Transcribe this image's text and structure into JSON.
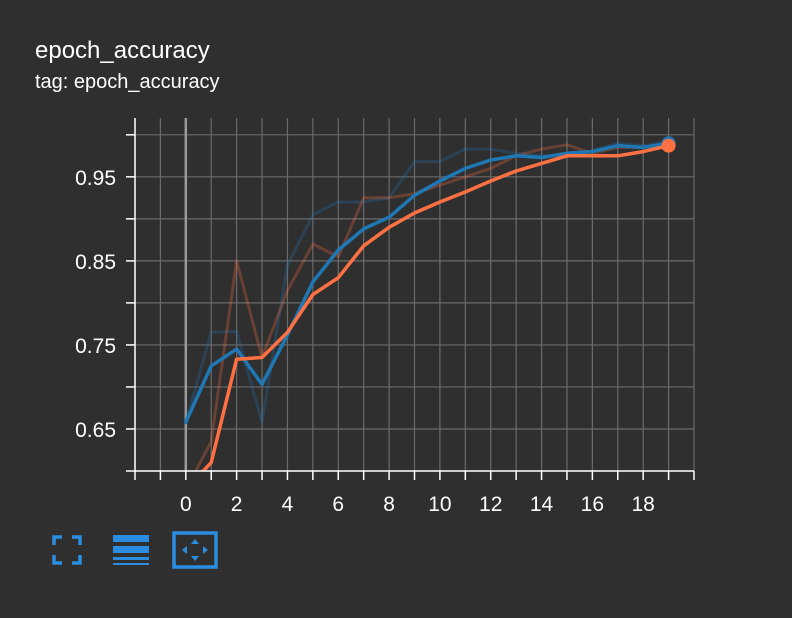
{
  "card": {
    "title": "epoch_accuracy",
    "tag": "tag: epoch_accuracy"
  },
  "colors": {
    "background": "#2f2f2f",
    "grid": "#6a6a6a",
    "axis": "#ffffff",
    "zero_line": "#9a9a9a",
    "train": "#1f77b4",
    "validation": "#ff7043",
    "toolbar_icon": "#2b8de0"
  },
  "toolbar": {
    "buttons": [
      {
        "name": "fullscreen-icon"
      },
      {
        "name": "toggle-log-scale-icon"
      },
      {
        "name": "fit-domain-icon"
      }
    ]
  },
  "chart_data": {
    "type": "line",
    "title": "epoch_accuracy",
    "xlabel": "",
    "ylabel": "",
    "xlim": [
      -2,
      20
    ],
    "ylim": [
      0.6,
      1.02
    ],
    "x_ticks": [
      0,
      2,
      4,
      6,
      8,
      10,
      12,
      14,
      16,
      18
    ],
    "x_tick_labels": [
      "0",
      "2",
      "4",
      "6",
      "8",
      "10",
      "12",
      "14",
      "16",
      "18"
    ],
    "y_ticks": [
      0.65,
      0.75,
      0.85,
      0.95
    ],
    "y_tick_labels": [
      "0.65",
      "0.75",
      "0.85",
      "0.95"
    ],
    "grid": true,
    "smoothing": "raw series drawn faded, smoothed series drawn bold",
    "series": [
      {
        "role": "train",
        "color": "#1f77b4",
        "x": [
          0,
          1,
          2,
          3,
          4,
          5,
          6,
          7,
          8,
          9,
          10,
          11,
          12,
          13,
          14,
          15,
          16,
          17,
          18,
          19
        ],
        "raw": [
          0.658,
          0.765,
          0.766,
          0.658,
          0.845,
          0.905,
          0.92,
          0.92,
          0.925,
          0.968,
          0.968,
          0.983,
          0.983,
          0.978,
          0.975,
          0.975,
          0.981,
          0.99,
          0.987,
          0.993
        ],
        "smoothed": [
          0.658,
          0.725,
          0.745,
          0.703,
          0.762,
          0.825,
          0.863,
          0.888,
          0.902,
          0.928,
          0.945,
          0.96,
          0.97,
          0.975,
          0.973,
          0.978,
          0.98,
          0.987,
          0.985,
          0.99
        ]
      },
      {
        "role": "validation",
        "color": "#ff7043",
        "x": [
          0,
          1,
          2,
          3,
          4,
          5,
          6,
          7,
          8,
          9,
          10,
          11,
          12,
          13,
          14,
          15,
          16,
          17,
          18,
          19
        ],
        "raw": [
          0.578,
          0.635,
          0.85,
          0.735,
          0.815,
          0.87,
          0.855,
          0.925,
          0.925,
          0.93,
          0.94,
          0.95,
          0.96,
          0.975,
          0.983,
          0.988,
          0.978,
          0.985,
          0.985,
          0.987
        ],
        "smoothed": [
          0.578,
          0.61,
          0.733,
          0.735,
          0.765,
          0.81,
          0.83,
          0.868,
          0.89,
          0.907,
          0.92,
          0.932,
          0.945,
          0.957,
          0.966,
          0.975,
          0.975,
          0.975,
          0.98,
          0.987
        ]
      }
    ]
  }
}
